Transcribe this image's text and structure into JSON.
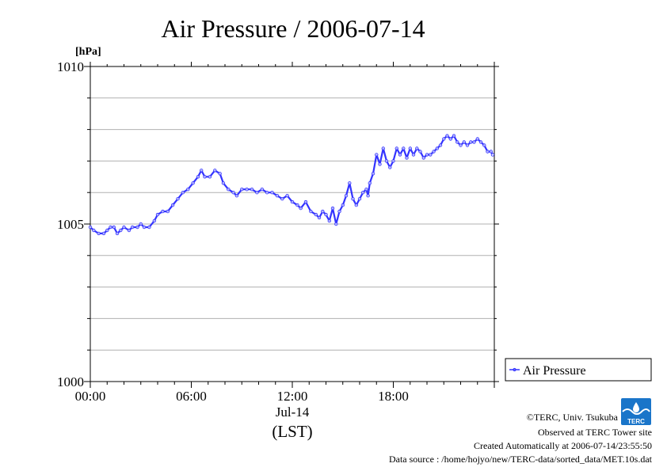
{
  "chart_data": {
    "type": "line",
    "title": "Air Pressure / 2006-07-14",
    "ylabel": "[hPa]",
    "xlabel": "(LST)",
    "x_date_label": "Jul-14",
    "ylim": [
      1000,
      1010
    ],
    "y_ticks": [
      "1000",
      "1005",
      "1010"
    ],
    "xlim": [
      "00:00",
      "24:00"
    ],
    "x_ticks": [
      {
        "hour": 0,
        "label": "00:00"
      },
      {
        "hour": 6,
        "label": "06:00"
      },
      {
        "hour": 12,
        "label": "12:00"
      },
      {
        "hour": 18,
        "label": "18:00"
      }
    ],
    "grid": true,
    "legend_position": "right",
    "series": [
      {
        "name": "Air Pressure",
        "color": "#3333ff",
        "points": [
          [
            0.0,
            1004.9
          ],
          [
            0.2,
            1004.8
          ],
          [
            0.5,
            1004.7
          ],
          [
            0.8,
            1004.7
          ],
          [
            1.0,
            1004.8
          ],
          [
            1.2,
            1004.9
          ],
          [
            1.4,
            1004.9
          ],
          [
            1.6,
            1004.7
          ],
          [
            1.8,
            1004.8
          ],
          [
            2.0,
            1004.9
          ],
          [
            2.3,
            1004.8
          ],
          [
            2.5,
            1004.9
          ],
          [
            2.8,
            1004.9
          ],
          [
            3.0,
            1005.0
          ],
          [
            3.2,
            1004.9
          ],
          [
            3.5,
            1004.9
          ],
          [
            3.8,
            1005.1
          ],
          [
            4.0,
            1005.3
          ],
          [
            4.3,
            1005.4
          ],
          [
            4.6,
            1005.4
          ],
          [
            4.9,
            1005.6
          ],
          [
            5.2,
            1005.8
          ],
          [
            5.5,
            1006.0
          ],
          [
            5.8,
            1006.1
          ],
          [
            6.1,
            1006.3
          ],
          [
            6.4,
            1006.5
          ],
          [
            6.6,
            1006.7
          ],
          [
            6.8,
            1006.5
          ],
          [
            7.1,
            1006.5
          ],
          [
            7.4,
            1006.7
          ],
          [
            7.7,
            1006.6
          ],
          [
            7.9,
            1006.3
          ],
          [
            8.2,
            1006.1
          ],
          [
            8.5,
            1006.0
          ],
          [
            8.7,
            1005.9
          ],
          [
            9.0,
            1006.1
          ],
          [
            9.3,
            1006.1
          ],
          [
            9.6,
            1006.1
          ],
          [
            9.9,
            1006.0
          ],
          [
            10.2,
            1006.1
          ],
          [
            10.5,
            1006.0
          ],
          [
            10.8,
            1006.0
          ],
          [
            11.1,
            1005.9
          ],
          [
            11.4,
            1005.8
          ],
          [
            11.7,
            1005.9
          ],
          [
            12.0,
            1005.7
          ],
          [
            12.3,
            1005.6
          ],
          [
            12.5,
            1005.5
          ],
          [
            12.8,
            1005.7
          ],
          [
            13.1,
            1005.4
          ],
          [
            13.4,
            1005.3
          ],
          [
            13.6,
            1005.2
          ],
          [
            13.8,
            1005.4
          ],
          [
            14.0,
            1005.3
          ],
          [
            14.2,
            1005.1
          ],
          [
            14.4,
            1005.5
          ],
          [
            14.6,
            1005.0
          ],
          [
            14.8,
            1005.4
          ],
          [
            15.0,
            1005.6
          ],
          [
            15.2,
            1005.9
          ],
          [
            15.4,
            1006.3
          ],
          [
            15.6,
            1005.8
          ],
          [
            15.8,
            1005.6
          ],
          [
            16.0,
            1005.8
          ],
          [
            16.2,
            1006.0
          ],
          [
            16.4,
            1006.1
          ],
          [
            16.5,
            1005.9
          ],
          [
            16.6,
            1006.3
          ],
          [
            16.8,
            1006.6
          ],
          [
            17.0,
            1007.2
          ],
          [
            17.2,
            1006.9
          ],
          [
            17.4,
            1007.4
          ],
          [
            17.6,
            1007.0
          ],
          [
            17.8,
            1006.8
          ],
          [
            18.0,
            1007.0
          ],
          [
            18.2,
            1007.4
          ],
          [
            18.4,
            1007.2
          ],
          [
            18.6,
            1007.4
          ],
          [
            18.8,
            1007.1
          ],
          [
            19.0,
            1007.4
          ],
          [
            19.2,
            1007.2
          ],
          [
            19.4,
            1007.4
          ],
          [
            19.6,
            1007.3
          ],
          [
            19.8,
            1007.1
          ],
          [
            20.0,
            1007.2
          ],
          [
            20.2,
            1007.2
          ],
          [
            20.4,
            1007.3
          ],
          [
            20.6,
            1007.4
          ],
          [
            20.8,
            1007.5
          ],
          [
            21.0,
            1007.7
          ],
          [
            21.2,
            1007.8
          ],
          [
            21.4,
            1007.7
          ],
          [
            21.6,
            1007.8
          ],
          [
            21.8,
            1007.6
          ],
          [
            22.0,
            1007.5
          ],
          [
            22.2,
            1007.6
          ],
          [
            22.4,
            1007.5
          ],
          [
            22.6,
            1007.6
          ],
          [
            22.8,
            1007.6
          ],
          [
            23.0,
            1007.7
          ],
          [
            23.2,
            1007.6
          ],
          [
            23.4,
            1007.5
          ],
          [
            23.6,
            1007.3
          ],
          [
            23.8,
            1007.3
          ],
          [
            23.9,
            1007.2
          ]
        ]
      }
    ]
  },
  "legend": {
    "label": "Air Pressure"
  },
  "credits": {
    "logo_text": "TERC",
    "copyright": "©TERC, Univ. Tsukuba",
    "observed": "Observed at TERC Tower site",
    "created": "Created Automatically at 2006-07-14/23:55:50",
    "source": "Data source : /home/hojyo/new/TERC-data/sorted_data/MET.10s.dat"
  }
}
